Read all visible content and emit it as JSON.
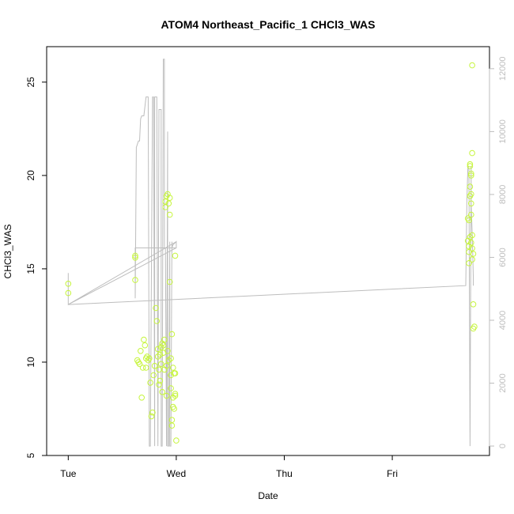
{
  "chart_data": {
    "type": "scatter",
    "title": "ATOM4 Northeast_Pacific_1 CHCl3_WAS",
    "xlabel": "Date",
    "ylabel": "CHCl3_WAS",
    "x_ticks": [
      "Tue",
      "Wed",
      "Thu",
      "Fri"
    ],
    "xlim_days": [
      -0.2,
      3.9
    ],
    "ylim": [
      5,
      26.9
    ],
    "y_ticks": [
      5,
      10,
      15,
      20,
      25
    ],
    "y2lim": [
      -300,
      12700
    ],
    "y2_ticks": [
      0,
      2000,
      4000,
      6000,
      8000,
      10000,
      12000
    ],
    "grid": false,
    "colors": {
      "points": "#c6f53c",
      "line": "#bdbdbd",
      "axes": "#000000"
    },
    "series": [
      {
        "kind": "points",
        "x_days": [
          0.0,
          0.0,
          0.62,
          0.62,
          0.62,
          0.64,
          0.65,
          0.66,
          0.67,
          0.68,
          0.69,
          0.7,
          0.71,
          0.72,
          0.72,
          0.73,
          0.74,
          0.75,
          0.76,
          0.77,
          0.78,
          0.79,
          0.8,
          0.81,
          0.82,
          0.83,
          0.83,
          0.84,
          0.84,
          0.85,
          0.85,
          0.86,
          0.86,
          0.87,
          0.87,
          0.88,
          0.88,
          0.89,
          0.89,
          0.9,
          0.9,
          0.91,
          0.91,
          0.91,
          0.92,
          0.92,
          0.93,
          0.93,
          0.94,
          0.94,
          0.94,
          0.95,
          0.95,
          0.95,
          0.96,
          0.96,
          0.96,
          0.97,
          0.97,
          0.97,
          0.98,
          0.98,
          0.99,
          0.99,
          0.99,
          0.99,
          1.0,
          3.7,
          3.7,
          3.71,
          3.71,
          3.71,
          3.71,
          3.72,
          3.72,
          3.72,
          3.72,
          3.72,
          3.73,
          3.73,
          3.73,
          3.73,
          3.73,
          3.73,
          3.74,
          3.74,
          3.74,
          3.74,
          3.74,
          3.75,
          3.75,
          3.75,
          3.76
        ],
        "y": [
          14.2,
          13.7,
          15.6,
          15.7,
          14.4,
          10.1,
          10.0,
          9.9,
          10.6,
          8.1,
          9.7,
          11.2,
          10.9,
          9.7,
          10.2,
          10.3,
          10.1,
          10.2,
          8.9,
          7.1,
          7.3,
          9.3,
          9.8,
          12.9,
          12.2,
          10.3,
          10.7,
          9.6,
          8.8,
          10.4,
          9.0,
          10.8,
          9.9,
          11.0,
          8.4,
          10.5,
          10.9,
          11.2,
          9.6,
          18.6,
          18.3,
          18.9,
          9.8,
          8.2,
          19.0,
          10.6,
          18.5,
          10.1,
          18.8,
          17.9,
          14.3,
          10.2,
          9.3,
          8.6,
          11.5,
          6.9,
          6.6,
          9.7,
          8.1,
          7.6,
          9.4,
          7.5,
          8.3,
          8.2,
          15.7,
          9.4,
          5.8,
          17.7,
          16.5,
          17.6,
          16.2,
          15.9,
          15.3,
          18.9,
          19.4,
          20.5,
          20.6,
          16.7,
          20.0,
          20.1,
          19.0,
          18.5,
          17.9,
          16.4,
          21.2,
          25.9,
          16.8,
          16.1,
          15.5,
          15.8,
          13.1,
          11.8,
          11.9
        ]
      },
      {
        "kind": "line",
        "axis": "right",
        "x_days": [
          0.0,
          0.0,
          1.0,
          1.0,
          0.62,
          0.62,
          0.63,
          0.65,
          0.66,
          0.67,
          0.68,
          0.7,
          0.72,
          0.74,
          0.75,
          0.76,
          0.78,
          0.79,
          0.8,
          0.8,
          0.82,
          0.83,
          0.83,
          0.84,
          0.86,
          0.86,
          0.87,
          0.88,
          0.89,
          0.89,
          0.9,
          0.91,
          0.91,
          0.92,
          0.92,
          0.93,
          0.94,
          0.94,
          0.95,
          0.96,
          0.96,
          0.97,
          1.0,
          1.0,
          0.0,
          3.68,
          3.69,
          3.69,
          3.7,
          3.71,
          3.72,
          3.73,
          3.73,
          3.74,
          3.75,
          3.75
        ],
        "y": [
          5500,
          4500,
          6500,
          6300,
          6300,
          4700,
          9500,
          9700,
          9700,
          10400,
          10500,
          10500,
          11100,
          11100,
          0,
          0,
          11100,
          11100,
          0,
          11100,
          11100,
          0,
          0,
          10700,
          10700,
          0,
          0,
          12300,
          12300,
          6300,
          6300,
          0,
          0,
          10000,
          0,
          0,
          6500,
          0,
          0,
          6500,
          6300,
          6400,
          6500,
          6300,
          4500,
          5100,
          7600,
          7700,
          8900,
          8800,
          0,
          8900,
          7700,
          6800,
          5400,
          5100
        ]
      }
    ]
  }
}
